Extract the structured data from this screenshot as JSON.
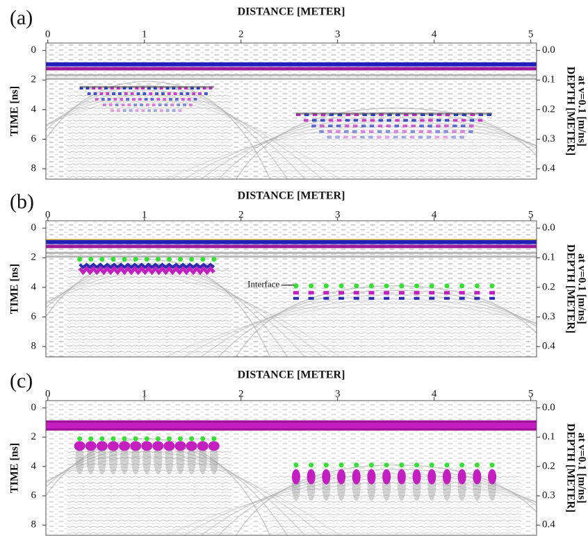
{
  "chart_data": [
    {
      "type": "radargram",
      "label": "(a)",
      "x_title": "DISTANCE [METER]",
      "y_title": "TIME [ns]",
      "y2_title": "DEPTH [METER]",
      "y2_subtitle": "at v=0.1 [m/ns]",
      "xlim": [
        -0.02,
        5.06
      ],
      "xticks": [
        0,
        1,
        2,
        3,
        4,
        5
      ],
      "ylim": [
        -0.5,
        8.7
      ],
      "yticks": [
        0,
        2,
        4,
        6,
        8
      ],
      "y2lim": [
        -0.025,
        0.435
      ],
      "y2ticks": [
        {
          "value": 0,
          "label": "0.0"
        },
        0.1,
        0.2,
        0.3,
        0.4
      ]
    },
    {
      "type": "radargram",
      "label": "(b)",
      "x_title": "DISTANCE [METER]",
      "y_title": "TIME [ns]",
      "y2_title": "DEPTH [METER]",
      "y2_subtitle": "at v=0.1 [m/ns]",
      "xlim": [
        -0.02,
        5.06
      ],
      "xticks": [
        0,
        1,
        2,
        3,
        4,
        5
      ],
      "ylim": [
        -0.5,
        8.7
      ],
      "yticks": [
        0,
        2,
        4,
        6,
        8
      ],
      "y2lim": [
        -0.025,
        0.435
      ],
      "y2ticks": [
        {
          "value": 0,
          "label": "0.0"
        },
        0.1,
        0.2,
        0.3,
        0.4
      ],
      "annotation": "Interface"
    },
    {
      "type": "radargram",
      "label": "(c)",
      "x_title": "DISTANCE [METER]",
      "y_title": "TIME [ns]",
      "y2_title": "DEPTH [METER]",
      "y2_subtitle": "at v=0.1 [m/ns]",
      "xlim": [
        -0.02,
        5.06
      ],
      "xticks": [
        0,
        1,
        2,
        3,
        4,
        5
      ],
      "ylim": [
        -0.5,
        8.7
      ],
      "yticks": [
        0,
        2,
        4,
        6,
        8
      ],
      "y2lim": [
        -0.025,
        0.435
      ],
      "y2ticks": [
        {
          "value": 0,
          "label": "0.0"
        },
        0.1,
        0.2,
        0.3,
        0.4
      ]
    }
  ]
}
